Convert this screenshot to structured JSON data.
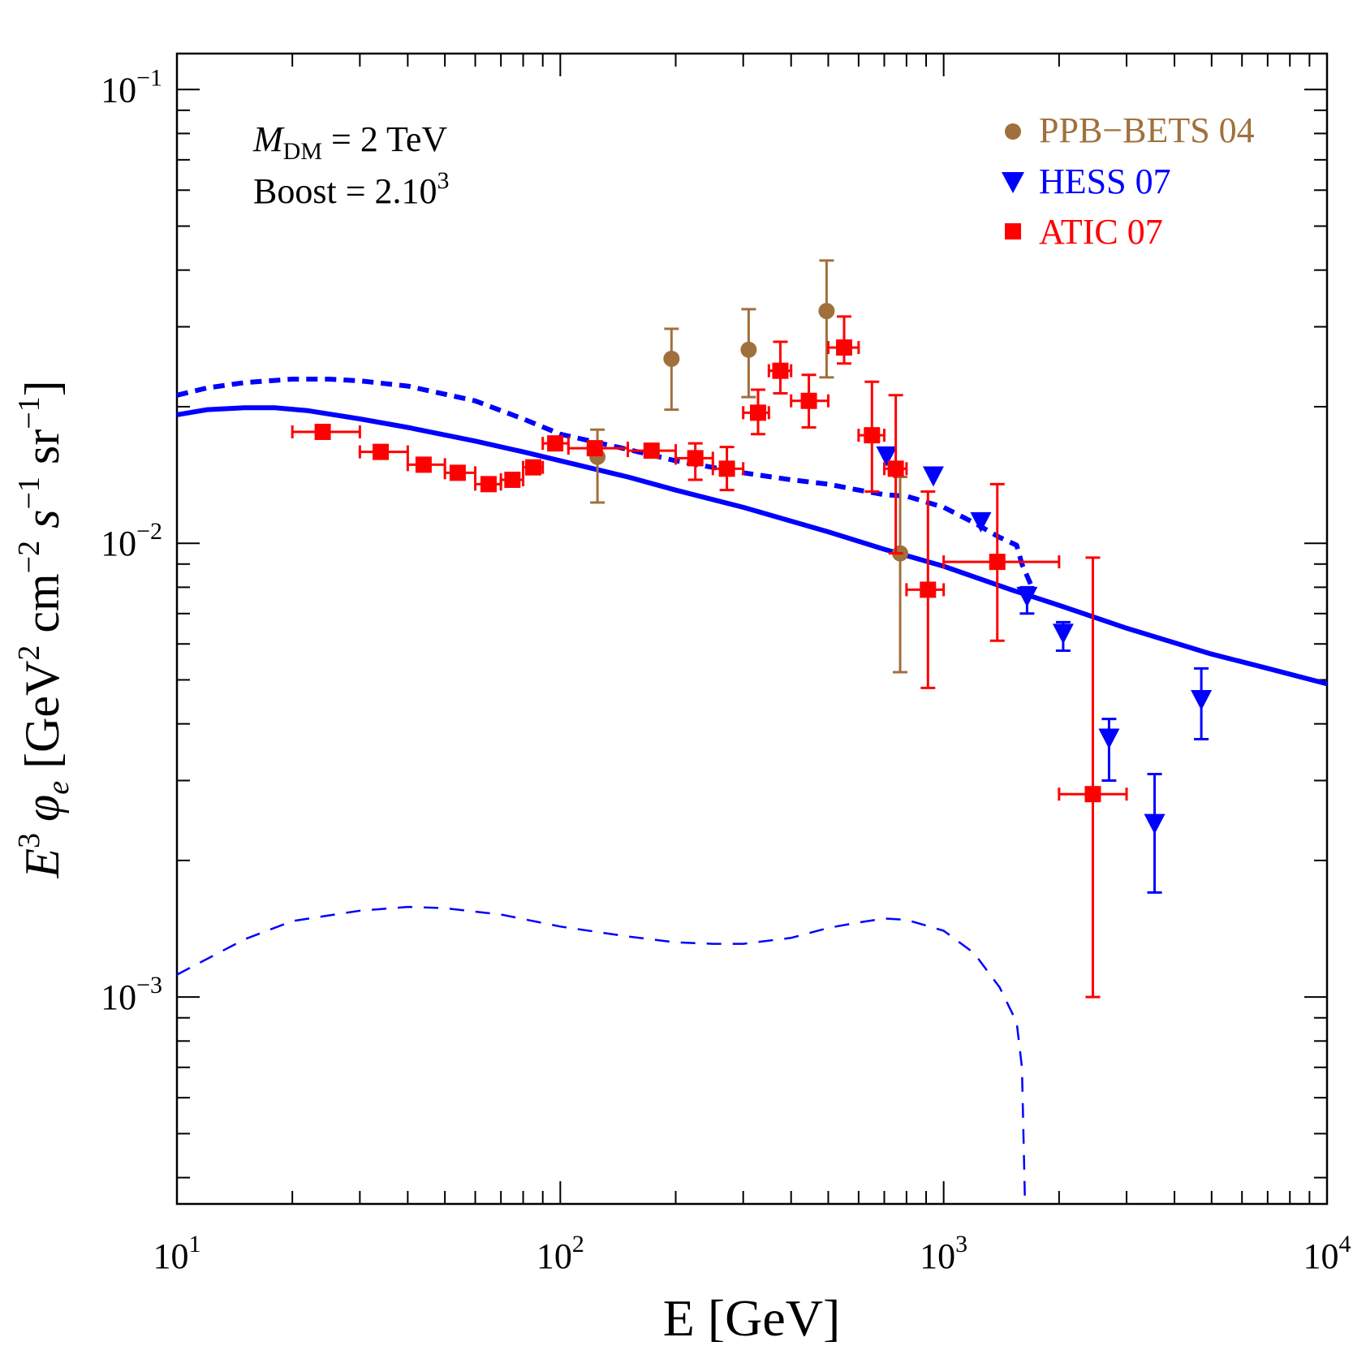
{
  "chart_data": {
    "type": "scatter",
    "title": "",
    "xlabel": "E [GeV]",
    "ylabel_parts": {
      "e": "E",
      "e_exp": "3",
      "phi": "φ",
      "phi_sub": "e",
      "open": " [GeV",
      "gev_exp": "2",
      "cm": " cm",
      "cm_exp": "−2",
      "s": " s",
      "s_exp": "−1",
      "sr": " sr",
      "sr_exp": "−1",
      "close": "]"
    },
    "x_scale": "log",
    "y_scale": "log",
    "xlim": [
      10,
      10000
    ],
    "ylim": [
      0.00035,
      0.12
    ],
    "x_ticks": [
      {
        "value": 10,
        "base": "10",
        "exp": "1"
      },
      {
        "value": 100,
        "base": "10",
        "exp": "2"
      },
      {
        "value": 1000,
        "base": "10",
        "exp": "3"
      },
      {
        "value": 10000,
        "base": "10",
        "exp": "4"
      }
    ],
    "y_ticks": [
      {
        "value": 0.1,
        "base": "10",
        "exp": "−1"
      },
      {
        "value": 0.01,
        "base": "10",
        "exp": "−2"
      },
      {
        "value": 0.001,
        "base": "10",
        "exp": "−3"
      }
    ],
    "annotation": {
      "m_symbol": "M",
      "m_sub": "DM",
      "m_text": " = 2 TeV",
      "boost_text": "Boost = 2.10",
      "boost_exp": "3"
    },
    "legend_position": "top-right",
    "series": [
      {
        "name": "PPB−BETS 04",
        "kind": "points",
        "marker": "circle",
        "color": "#a0703c",
        "points": [
          {
            "x": 125,
            "y": 0.0155,
            "ylo": 0.0123,
            "yhi": 0.0178
          },
          {
            "x": 195,
            "y": 0.0255,
            "ylo": 0.0197,
            "yhi": 0.0297
          },
          {
            "x": 310,
            "y": 0.0267,
            "ylo": 0.021,
            "yhi": 0.0328
          },
          {
            "x": 495,
            "y": 0.0325,
            "ylo": 0.0232,
            "yhi": 0.042
          },
          {
            "x": 770,
            "y": 0.0095,
            "ylo": 0.0052,
            "yhi": 0.014
          }
        ]
      },
      {
        "name": "HESS 07",
        "kind": "points",
        "marker": "triangle-down",
        "color": "#0000ff",
        "points": [
          {
            "x": 710,
            "y": 0.0155
          },
          {
            "x": 940,
            "y": 0.014
          },
          {
            "x": 1250,
            "y": 0.0111
          },
          {
            "x": 1650,
            "y": 0.0076,
            "ylo": 0.007,
            "yhi": 0.008
          },
          {
            "x": 2050,
            "y": 0.0063,
            "ylo": 0.0058,
            "yhi": 0.0067
          },
          {
            "x": 2700,
            "y": 0.0037,
            "ylo": 0.003,
            "yhi": 0.0041
          },
          {
            "x": 3550,
            "y": 0.0024,
            "ylo": 0.0017,
            "yhi": 0.0031
          },
          {
            "x": 4700,
            "y": 0.0045,
            "ylo": 0.0037,
            "yhi": 0.0053
          }
        ]
      },
      {
        "name": "ATIC 07",
        "kind": "points",
        "marker": "square",
        "color": "#ff0000",
        "points": [
          {
            "x": 24,
            "y": 0.0176,
            "xlo": 20,
            "xhi": 30
          },
          {
            "x": 34,
            "y": 0.0159,
            "xlo": 30,
            "xhi": 40
          },
          {
            "x": 44,
            "y": 0.0149,
            "xlo": 40,
            "xhi": 50
          },
          {
            "x": 54,
            "y": 0.0143,
            "xlo": 50,
            "xhi": 60
          },
          {
            "x": 65,
            "y": 0.0135,
            "xlo": 60,
            "xhi": 70
          },
          {
            "x": 75,
            "y": 0.0138,
            "xlo": 70,
            "xhi": 80
          },
          {
            "x": 85,
            "y": 0.0147,
            "xlo": 80,
            "xhi": 90
          },
          {
            "x": 97,
            "y": 0.0166,
            "xlo": 90,
            "xhi": 105
          },
          {
            "x": 123,
            "y": 0.0162,
            "xlo": 105,
            "xhi": 150
          },
          {
            "x": 173,
            "y": 0.016,
            "xlo": 150,
            "xhi": 200
          },
          {
            "x": 225,
            "y": 0.0154,
            "xlo": 200,
            "xhi": 250,
            "ylo": 0.0138,
            "yhi": 0.0166
          },
          {
            "x": 272,
            "y": 0.0146,
            "xlo": 250,
            "xhi": 300,
            "ylo": 0.0131,
            "yhi": 0.0163
          },
          {
            "x": 328,
            "y": 0.0194,
            "xlo": 300,
            "xhi": 350,
            "ylo": 0.0174,
            "yhi": 0.0218
          },
          {
            "x": 375,
            "y": 0.024,
            "xlo": 350,
            "xhi": 400,
            "ylo": 0.0214,
            "yhi": 0.0278
          },
          {
            "x": 445,
            "y": 0.0206,
            "xlo": 400,
            "xhi": 500,
            "ylo": 0.018,
            "yhi": 0.0235
          },
          {
            "x": 550,
            "y": 0.027,
            "xlo": 500,
            "xhi": 600,
            "ylo": 0.0249,
            "yhi": 0.0316
          },
          {
            "x": 650,
            "y": 0.0173,
            "xlo": 600,
            "xhi": 700,
            "ylo": 0.013,
            "yhi": 0.0227
          },
          {
            "x": 750,
            "y": 0.0146,
            "xlo": 700,
            "xhi": 800,
            "ylo": 0.0095,
            "yhi": 0.0212
          },
          {
            "x": 910,
            "y": 0.0079,
            "xlo": 800,
            "xhi": 1000,
            "ylo": 0.0048,
            "yhi": 0.013
          },
          {
            "x": 1380,
            "y": 0.0091,
            "xlo": 1000,
            "xhi": 2000,
            "ylo": 0.0061,
            "yhi": 0.0135
          },
          {
            "x": 2450,
            "y": 0.0028,
            "xlo": 2000,
            "xhi": 3000,
            "ylo": 0.001,
            "yhi": 0.0093
          }
        ]
      },
      {
        "name": "total-solid",
        "kind": "line",
        "style": "solid",
        "color": "#0000ff",
        "x": [
          10,
          12,
          15,
          18,
          22,
          30,
          40,
          60,
          80,
          100,
          150,
          200,
          300,
          500,
          700,
          1000,
          1500,
          2000,
          3000,
          5000,
          7000,
          10000
        ],
        "y": [
          0.0192,
          0.0197,
          0.0199,
          0.0199,
          0.0196,
          0.0188,
          0.018,
          0.0168,
          0.0159,
          0.0152,
          0.014,
          0.0131,
          0.012,
          0.0106,
          0.0097,
          0.0089,
          0.0079,
          0.0073,
          0.0065,
          0.0057,
          0.0053,
          0.0049
        ]
      },
      {
        "name": "total-dotted",
        "kind": "line",
        "style": "dotted",
        "color": "#0000ff",
        "x": [
          10,
          12,
          15,
          20,
          25,
          30,
          40,
          60,
          80,
          100,
          150,
          200,
          300,
          400,
          500,
          600,
          700,
          800,
          1000,
          1200,
          1400,
          1550,
          1600,
          1700
        ],
        "y": [
          0.0212,
          0.022,
          0.0226,
          0.023,
          0.023,
          0.0228,
          0.0222,
          0.0206,
          0.0188,
          0.0174,
          0.0161,
          0.0152,
          0.0143,
          0.0138,
          0.0135,
          0.0131,
          0.0128,
          0.0127,
          0.012,
          0.0111,
          0.0103,
          0.0099,
          0.009,
          0.008
        ]
      },
      {
        "name": "dm-dashed",
        "kind": "line",
        "style": "dashed",
        "color": "#0000ff",
        "x": [
          10,
          15,
          20,
          30,
          40,
          50,
          70,
          100,
          150,
          200,
          250,
          300,
          400,
          500,
          600,
          700,
          800,
          1000,
          1200,
          1400,
          1550,
          1600,
          1630
        ],
        "y": [
          0.00112,
          0.00134,
          0.00147,
          0.00155,
          0.00158,
          0.00157,
          0.00152,
          0.00143,
          0.00136,
          0.00132,
          0.00131,
          0.00131,
          0.00135,
          0.00142,
          0.00146,
          0.00149,
          0.00148,
          0.0014,
          0.00125,
          0.00105,
          0.00088,
          0.0007,
          0.00035
        ]
      }
    ]
  }
}
